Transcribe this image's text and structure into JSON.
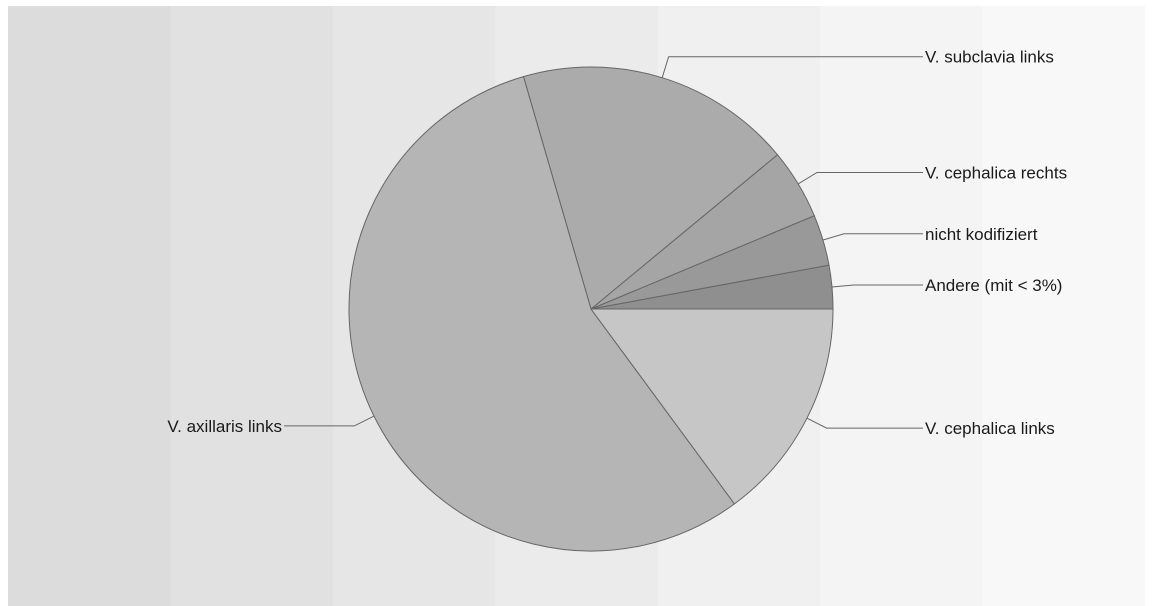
{
  "chart_data": {
    "type": "pie",
    "title": "",
    "start": "3 o'clock",
    "direction": "counter-clockwise",
    "slices": [
      {
        "label": "Andere (mit < 3%)",
        "value": 2.9,
        "color": "#8f8f8f"
      },
      {
        "label": "nicht kodifiziert",
        "value": 3.4,
        "color": "#999999"
      },
      {
        "label": "V. cephalica rechts",
        "value": 4.7,
        "color": "#a5a5a5"
      },
      {
        "label": "V. subclavia links",
        "value": 18.5,
        "color": "#ababab"
      },
      {
        "label": "V. axillaris links",
        "value": 55.6,
        "color": "#b5b5b5"
      },
      {
        "label": "V. cephalica links",
        "value": 14.9,
        "color": "#c6c6c6"
      }
    ]
  },
  "background": {
    "stripes": [
      "#dcdcdc",
      "#e1e1e1",
      "#e6e6e6",
      "#ebebeb",
      "#f0f0f0",
      "#f4f4f4",
      "#f8f8f8"
    ]
  }
}
